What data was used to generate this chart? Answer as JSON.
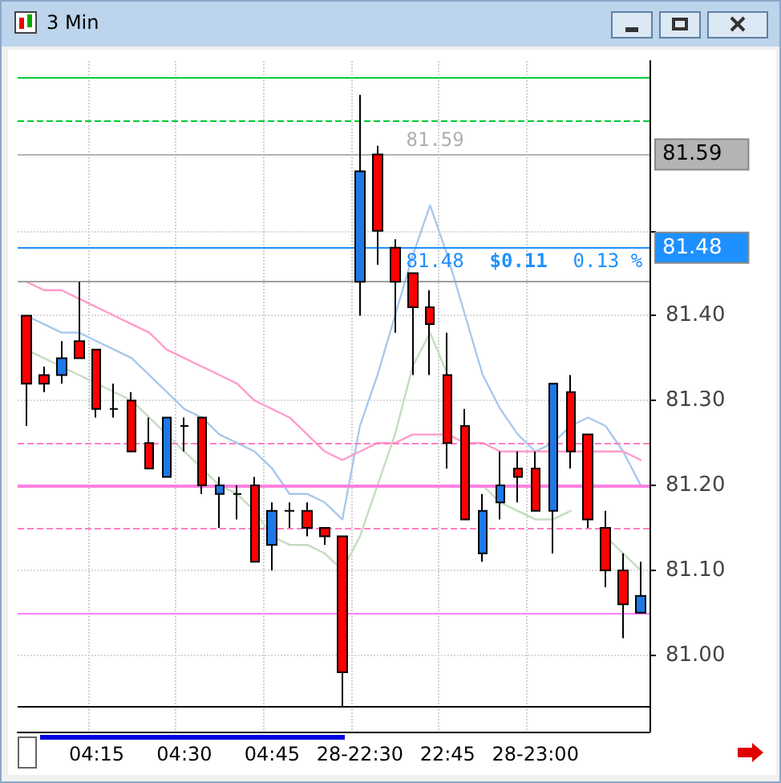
{
  "chart_data": {
    "type": "candlestick",
    "title": "3 Min",
    "categories": [
      null,
      null,
      null,
      null,
      "04:15",
      null,
      null,
      null,
      null,
      "04:30",
      null,
      null,
      null,
      null,
      "04:45",
      null,
      null,
      null,
      null,
      "28-22:30",
      null,
      null,
      null,
      null,
      "22:45",
      null,
      null,
      null,
      null,
      "28-23:00",
      null,
      null,
      null,
      null,
      null,
      null
    ],
    "ohlc": [
      [
        81.4,
        81.4,
        81.27,
        81.32
      ],
      [
        81.33,
        81.34,
        81.31,
        81.32
      ],
      [
        81.33,
        81.37,
        81.32,
        81.35
      ],
      [
        81.37,
        81.44,
        81.35,
        81.35
      ],
      [
        81.36,
        81.36,
        81.28,
        81.29
      ],
      [
        81.29,
        81.32,
        81.28,
        81.29
      ],
      [
        81.3,
        81.31,
        81.24,
        81.24
      ],
      [
        81.25,
        81.28,
        81.22,
        81.22
      ],
      [
        81.21,
        81.28,
        81.21,
        81.28
      ],
      [
        81.27,
        81.28,
        81.24,
        81.27
      ],
      [
        81.28,
        81.28,
        81.19,
        81.2
      ],
      [
        81.19,
        81.21,
        81.15,
        81.2
      ],
      [
        81.19,
        81.2,
        81.16,
        81.19
      ],
      [
        81.2,
        81.21,
        81.11,
        81.11
      ],
      [
        81.13,
        81.18,
        81.1,
        81.17
      ],
      [
        81.17,
        81.18,
        81.15,
        81.17
      ],
      [
        81.17,
        81.18,
        81.14,
        81.15
      ],
      [
        81.15,
        81.15,
        81.13,
        81.14
      ],
      [
        81.14,
        81.14,
        80.94,
        80.98
      ],
      [
        81.44,
        81.66,
        81.4,
        81.57
      ],
      [
        81.59,
        81.6,
        81.46,
        81.5
      ],
      [
        81.48,
        81.49,
        81.38,
        81.44
      ],
      [
        81.45,
        81.45,
        81.33,
        81.41
      ],
      [
        81.41,
        81.43,
        81.33,
        81.39
      ],
      [
        81.33,
        81.38,
        81.22,
        81.25
      ],
      [
        81.27,
        81.29,
        81.16,
        81.16
      ],
      [
        81.12,
        81.19,
        81.11,
        81.17
      ],
      [
        81.18,
        81.24,
        81.16,
        81.2
      ],
      [
        81.22,
        81.24,
        81.18,
        81.21
      ],
      [
        81.22,
        81.24,
        81.17,
        81.17
      ],
      [
        81.17,
        81.32,
        81.12,
        81.32
      ],
      [
        81.31,
        81.33,
        81.22,
        81.24
      ],
      [
        81.26,
        81.26,
        81.15,
        81.16
      ],
      [
        81.15,
        81.17,
        81.08,
        81.1
      ],
      [
        81.1,
        81.12,
        81.02,
        81.06
      ],
      [
        81.05,
        81.11,
        81.05,
        81.07
      ]
    ],
    "colors": [
      "#ff0000",
      "#ff0000",
      "#1e78e6",
      "#ff0000",
      "#ff0000",
      "#000000",
      "#ff0000",
      "#ff0000",
      "#1e78e6",
      "#000000",
      "#ff0000",
      "#1e78e6",
      "#000000",
      "#ff0000",
      "#1e78e6",
      "#000000",
      "#ff0000",
      "#ff0000",
      "#ff0000",
      "#1e78e6",
      "#ff0000",
      "#ff0000",
      "#ff0000",
      "#ff0000",
      "#ff0000",
      "#ff0000",
      "#1e78e6",
      "#1e78e6",
      "#ff0000",
      "#ff0000",
      "#1e78e6",
      "#ff0000",
      "#ff0000",
      "#ff0000",
      "#ff0000",
      "#1e78e6"
    ],
    "series": [
      {
        "type": "line",
        "color": "#a8c8ec",
        "values": [
          81.4,
          81.39,
          81.38,
          81.38,
          81.37,
          81.36,
          81.35,
          81.33,
          81.31,
          81.29,
          81.28,
          81.26,
          81.25,
          81.24,
          81.22,
          81.19,
          81.19,
          81.18,
          81.16,
          81.27,
          81.33,
          81.4,
          81.47,
          81.53,
          81.47,
          81.4,
          81.33,
          81.29,
          81.26,
          81.24,
          81.25,
          81.27,
          81.28,
          81.27,
          81.24,
          81.2
        ]
      },
      {
        "type": "line",
        "color": "#c4dcc0",
        "values": [
          81.36,
          81.35,
          81.34,
          81.33,
          81.32,
          81.31,
          81.3,
          81.28,
          81.26,
          81.24,
          81.22,
          81.2,
          81.19,
          81.17,
          81.14,
          81.13,
          81.13,
          81.12,
          81.1,
          81.14,
          81.2,
          81.26,
          81.34,
          81.38,
          81.33,
          null,
          81.2,
          81.18,
          81.17,
          81.16,
          81.16,
          81.17,
          null,
          81.14,
          81.12,
          81.1
        ]
      },
      {
        "type": "line",
        "color": "#ff9ccc",
        "values": [
          81.44,
          81.43,
          81.43,
          81.42,
          81.41,
          81.4,
          81.39,
          81.38,
          81.36,
          81.35,
          81.34,
          81.33,
          81.32,
          81.3,
          81.29,
          81.28,
          81.26,
          81.24,
          81.23,
          81.24,
          81.25,
          81.25,
          81.26,
          81.26,
          81.26,
          81.25,
          81.25,
          81.24,
          81.24,
          81.24,
          81.24,
          81.24,
          81.24,
          81.24,
          81.24,
          81.23
        ]
      }
    ],
    "ylim": [
      80.91,
      81.7
    ],
    "yticks": [
      {
        "value": 81.0,
        "label": "81.00"
      },
      {
        "value": 81.1,
        "label": "81.10"
      },
      {
        "value": 81.2,
        "label": "81.20"
      },
      {
        "value": 81.3,
        "label": "81.30"
      },
      {
        "value": 81.4,
        "label": "81.40"
      },
      {
        "value": 81.5,
        "label": null
      }
    ],
    "ref_lines": [
      {
        "axis": "y",
        "value": 81.68,
        "color": "#00cc33",
        "line_style": "solid"
      },
      {
        "axis": "y",
        "value": 81.63,
        "color": "#00cc33",
        "line_style": "dashed"
      },
      {
        "axis": "y",
        "value": 81.59,
        "label": "81.59",
        "color": "#b4b4b4",
        "line_style": "solid"
      },
      {
        "axis": "y",
        "value": 81.48,
        "label": "81.48",
        "color": "#1e90ff",
        "line_style": "solid"
      },
      {
        "axis": "y",
        "value": 81.44,
        "color": "#a0a0a0",
        "line_style": "solid"
      },
      {
        "axis": "y",
        "value": 81.25,
        "color": "#ff80c0",
        "line_style": "dashed"
      },
      {
        "axis": "y",
        "value": 81.2,
        "color": "#ff80e0",
        "line_style": "solid"
      },
      {
        "axis": "y",
        "value": 81.15,
        "color": "#ff80c0",
        "line_style": "dashed"
      },
      {
        "axis": "y",
        "value": 81.05,
        "color": "#ff80ff",
        "line_style": "solid"
      },
      {
        "axis": "y",
        "value": 80.94,
        "color": "#000000",
        "line_style": "solid"
      }
    ],
    "annotations": [
      {
        "text": "81.59",
        "y": 81.59
      },
      {
        "text": "81.48",
        "y": 81.48
      },
      {
        "text": "$0.11",
        "y": 81.48
      },
      {
        "text": "0.13 %",
        "y": 81.48
      }
    ],
    "grid": true,
    "marker": "none",
    "line_style": "solid"
  }
}
